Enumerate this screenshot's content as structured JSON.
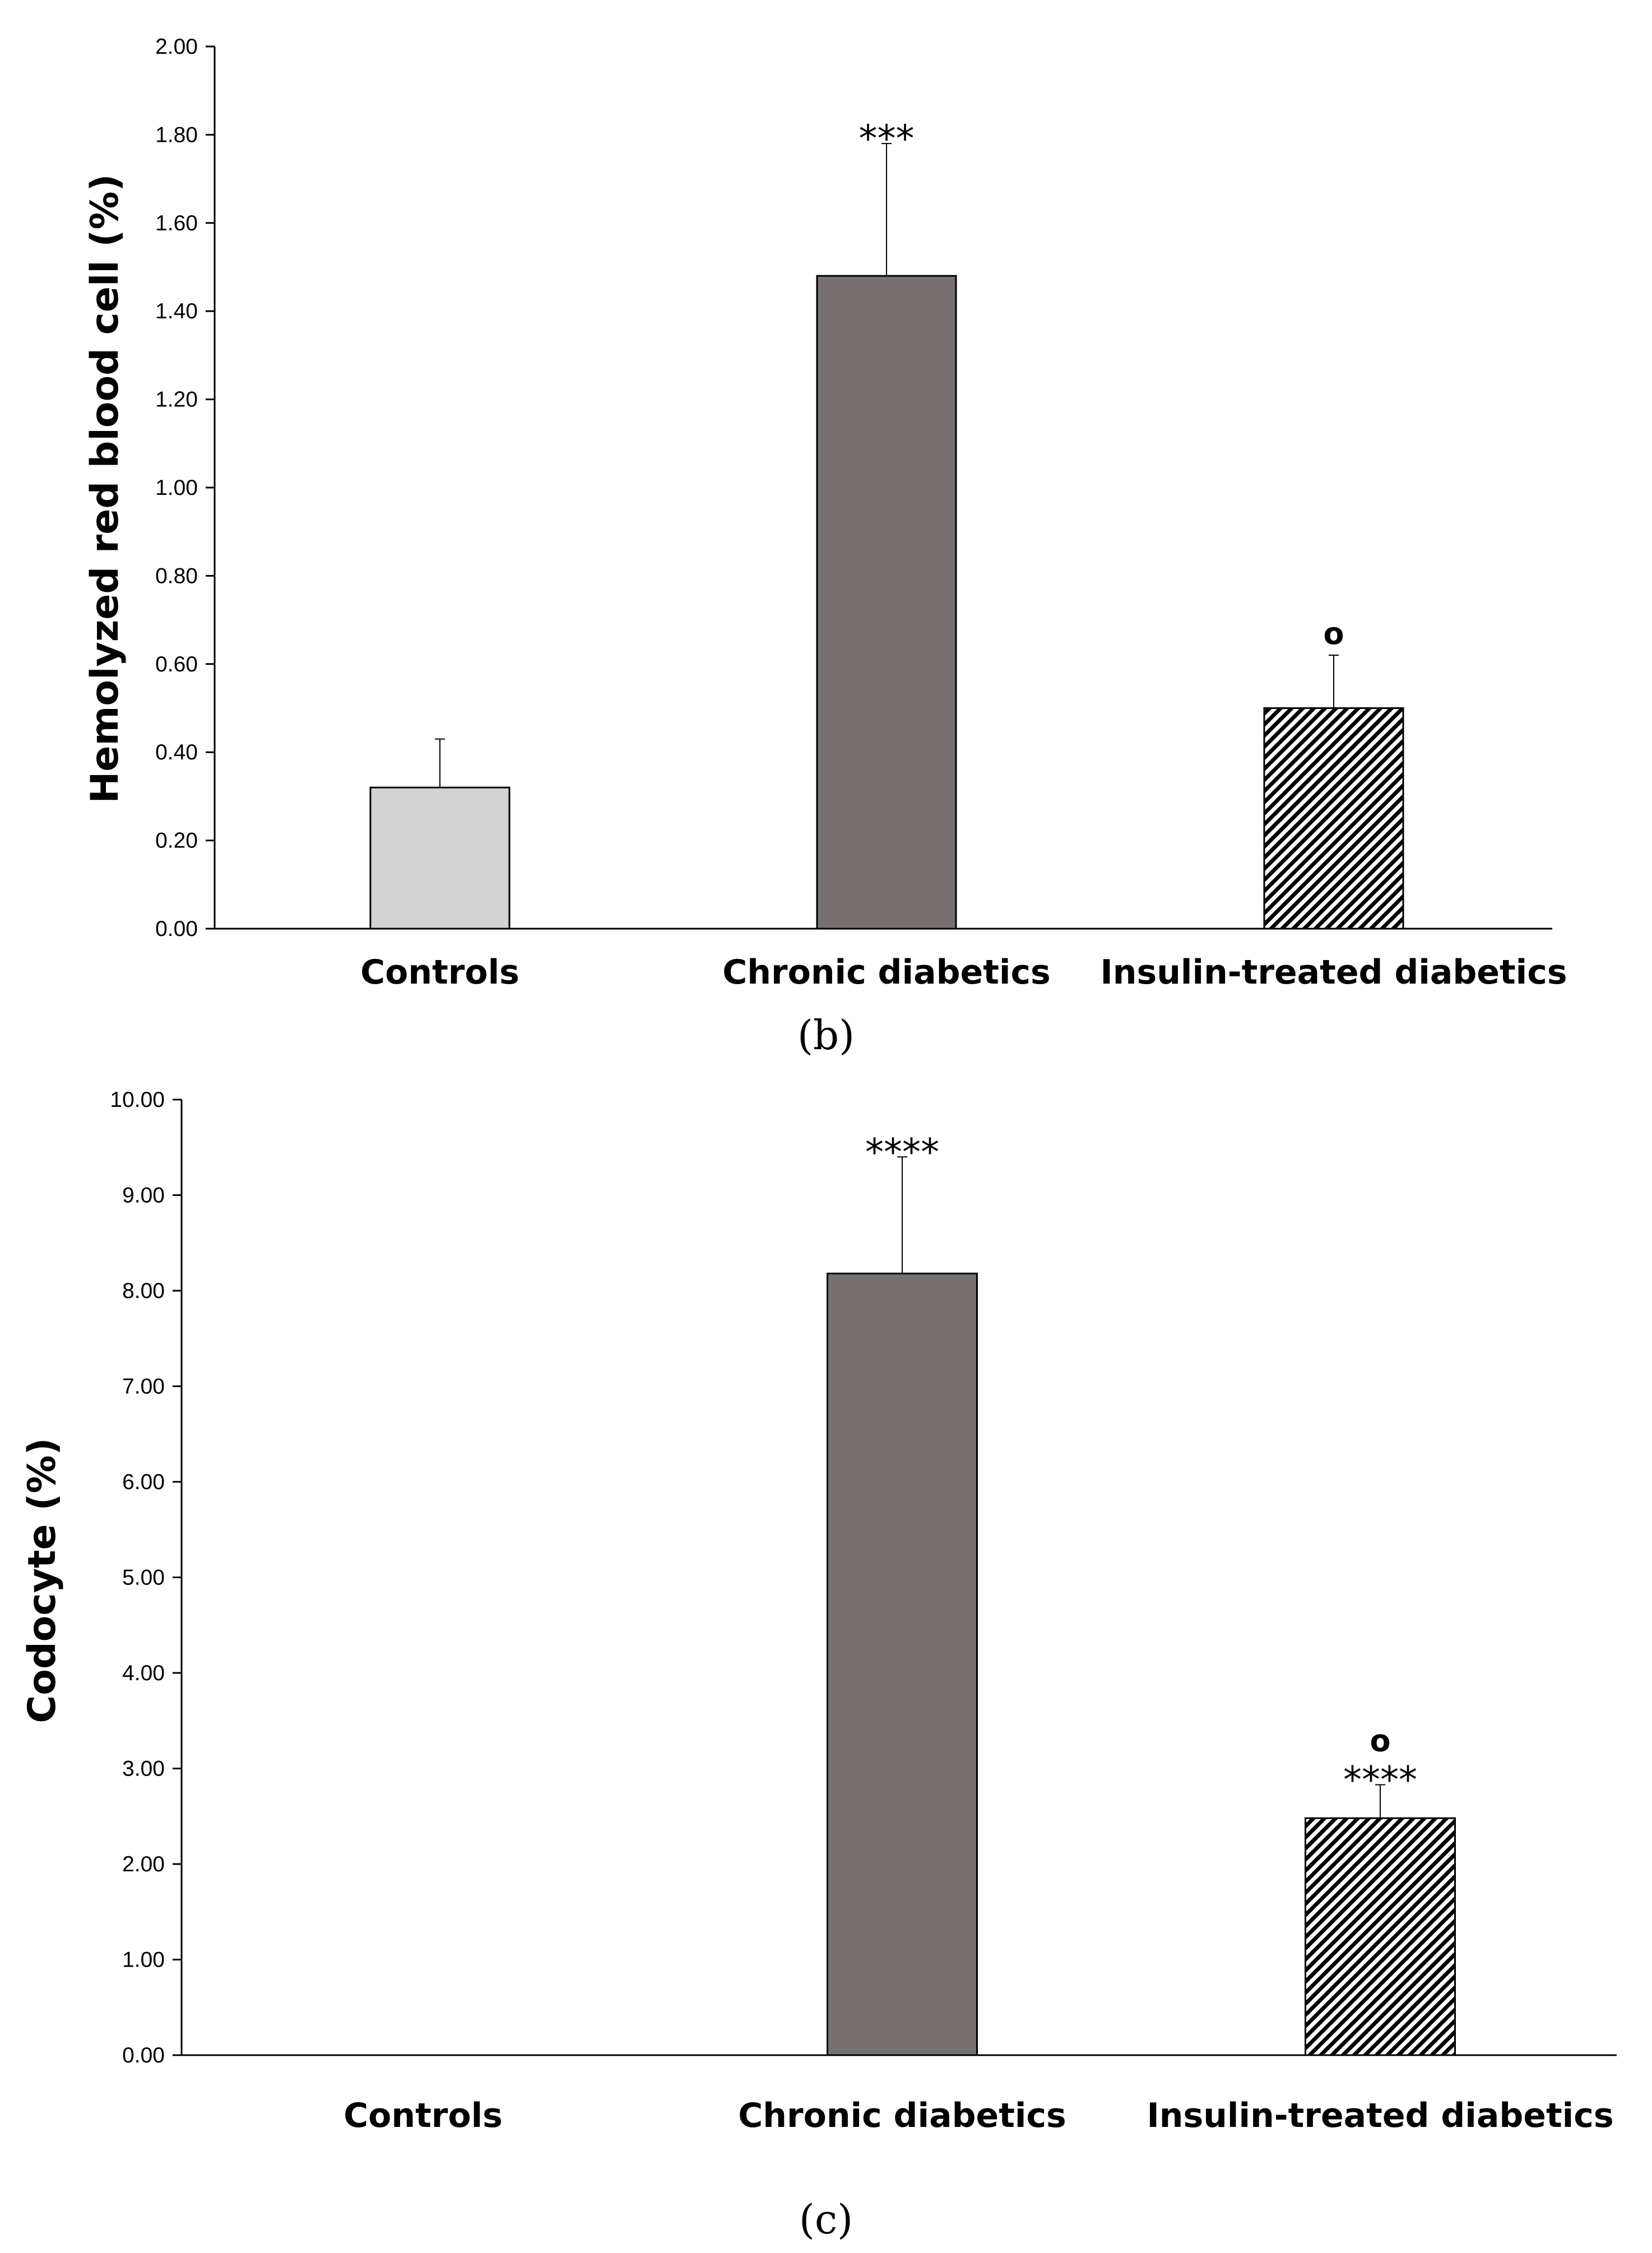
{
  "chart_data": [
    {
      "type": "bar",
      "panel_label": "(b)",
      "ylabel": "Hemolyzed red blood cell (%)",
      "xlabel": "",
      "ylim": [
        0,
        2.0
      ],
      "yticks": [
        "0.00",
        "0.20",
        "0.40",
        "0.60",
        "0.80",
        "1.00",
        "1.20",
        "1.40",
        "1.60",
        "1.80",
        "2.00"
      ],
      "categories": [
        "Controls",
        "Chronic diabetics",
        "Insulin-treated diabetics"
      ],
      "values": [
        0.32,
        1.48,
        0.5
      ],
      "errors": [
        0.11,
        0.3,
        0.12
      ],
      "significance": [
        "",
        "***",
        ""
      ],
      "markers": [
        "",
        "",
        "o"
      ],
      "colors": [
        "#d3d3d3",
        "#767170",
        "hatch"
      ]
    },
    {
      "type": "bar",
      "panel_label": "(c)",
      "ylabel": "Codocyte (%)",
      "xlabel": "",
      "ylim": [
        0,
        10.0
      ],
      "yticks": [
        "0.00",
        "1.00",
        "2.00",
        "3.00",
        "4.00",
        "5.00",
        "6.00",
        "7.00",
        "8.00",
        "9.00",
        "10.00"
      ],
      "categories": [
        "Controls",
        "Chronic diabetics",
        "Insulin-treated diabetics"
      ],
      "values": [
        0.0,
        8.18,
        2.48
      ],
      "errors": [
        0.0,
        1.22,
        0.35
      ],
      "significance": [
        "",
        "****",
        "****"
      ],
      "markers": [
        "",
        "",
        "o"
      ],
      "colors": [
        "#d3d3d3",
        "#767170",
        "hatch"
      ]
    }
  ]
}
